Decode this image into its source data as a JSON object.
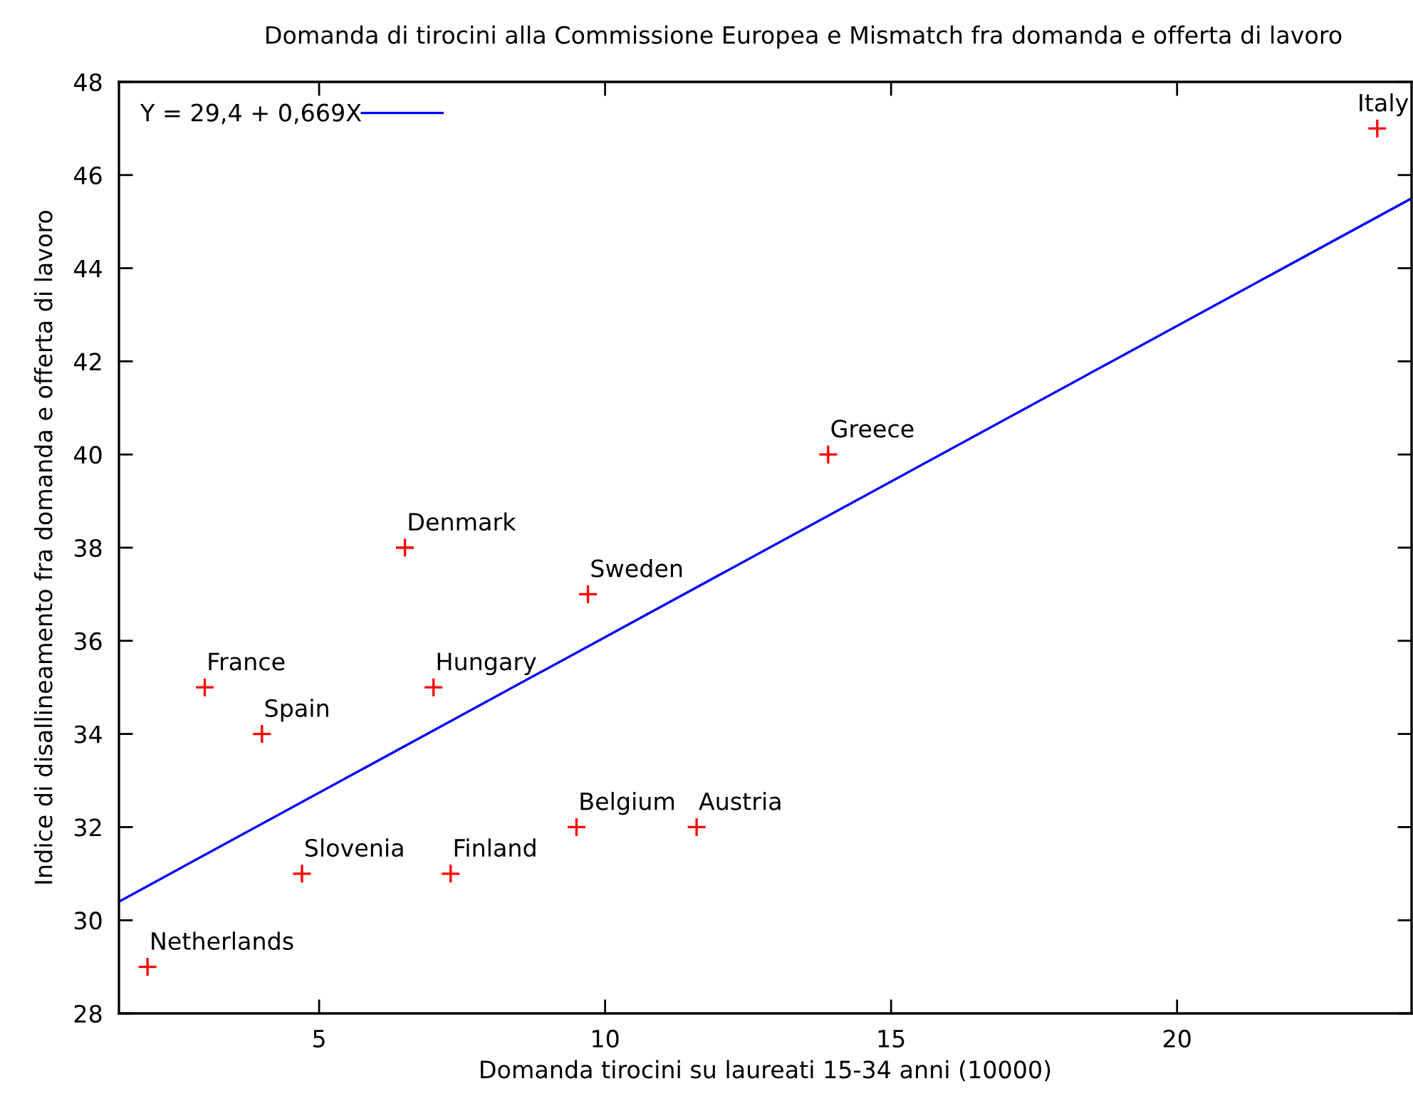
{
  "chart_data": {
    "type": "scatter",
    "title": "Domanda di tirocini alla Commissione Europea e Mismatch fra domanda e offerta di lavoro",
    "xlabel": "Domanda tirocini su laureati 15-34 anni (10000)",
    "ylabel": "Indice di disallineamento fra domanda e offerta di lavoro",
    "xlim": [
      1.5,
      24.1
    ],
    "ylim": [
      28,
      48
    ],
    "xticks": [
      5,
      10,
      15,
      20
    ],
    "yticks": [
      28,
      30,
      32,
      34,
      36,
      38,
      40,
      42,
      44,
      46,
      48
    ],
    "legend": "top left",
    "series": [
      {
        "color": "#ff0000",
        "marker": "cross",
        "x": [
          2.0,
          3.0,
          4.0,
          4.7,
          6.5,
          7.0,
          7.3,
          9.5,
          9.7,
          11.6,
          13.9,
          23.5
        ],
        "values": [
          29,
          35,
          34,
          31,
          38,
          35,
          31,
          32,
          37,
          32,
          40,
          47
        ]
      },
      {
        "type": "line",
        "name": "Y = 29,4 + 0,669X",
        "color": "#0000ff",
        "x": [
          1.5,
          24.1
        ],
        "values": [
          30.4,
          45.5
        ]
      }
    ],
    "annotations": [
      {
        "text": "Netherlands",
        "x": 2.0,
        "y": 29
      },
      {
        "text": "France",
        "x": 3.0,
        "y": 35
      },
      {
        "text": "Spain",
        "x": 4.0,
        "y": 34
      },
      {
        "text": "Slovenia",
        "x": 4.7,
        "y": 31
      },
      {
        "text": "Denmark",
        "x": 6.5,
        "y": 38
      },
      {
        "text": "Hungary",
        "x": 7.0,
        "y": 35
      },
      {
        "text": "Finland",
        "x": 7.3,
        "y": 31
      },
      {
        "text": "Belgium",
        "x": 9.5,
        "y": 32
      },
      {
        "text": "Sweden",
        "x": 9.7,
        "y": 37
      },
      {
        "text": "Austria",
        "x": 11.6,
        "y": 32
      },
      {
        "text": "Greece",
        "x": 13.9,
        "y": 40
      },
      {
        "text": "Italy",
        "x": 23.5,
        "y": 47
      }
    ]
  }
}
